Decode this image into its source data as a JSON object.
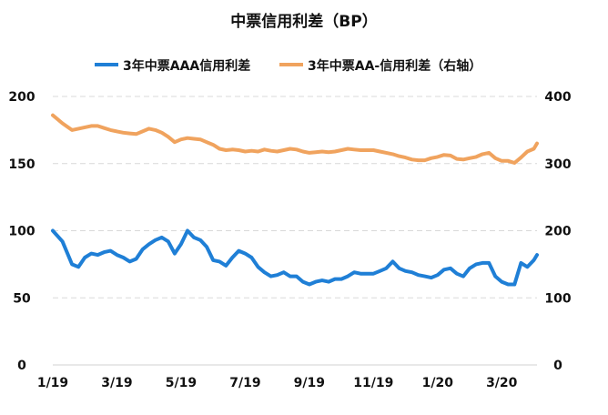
{
  "chart_data": {
    "type": "line",
    "title": "中票信用利差（BP）",
    "legend_position": "top",
    "grid": true,
    "x_tick_labels": [
      "1/19",
      "3/19",
      "5/19",
      "7/19",
      "9/19",
      "11/19",
      "1/20",
      "3/20"
    ],
    "y_left": {
      "range": [
        0,
        200
      ],
      "ticks": [
        "0",
        "50",
        "100",
        "150",
        "200"
      ]
    },
    "y_right": {
      "range": [
        0,
        400
      ],
      "ticks": [
        "0",
        "100",
        "200",
        "300",
        "400"
      ]
    },
    "series": [
      {
        "name": "3年中票AAA信用利差",
        "axis": "left",
        "color": "#1f7fd6",
        "points": [
          [
            0,
            100
          ],
          [
            0.3,
            92
          ],
          [
            0.6,
            75
          ],
          [
            0.8,
            73
          ],
          [
            1.0,
            80
          ],
          [
            1.2,
            83
          ],
          [
            1.4,
            82
          ],
          [
            1.6,
            84
          ],
          [
            1.8,
            85
          ],
          [
            2.0,
            82
          ],
          [
            2.2,
            80
          ],
          [
            2.4,
            77
          ],
          [
            2.6,
            79
          ],
          [
            2.8,
            86
          ],
          [
            3.0,
            90
          ],
          [
            3.2,
            93
          ],
          [
            3.4,
            95
          ],
          [
            3.6,
            92
          ],
          [
            3.8,
            83
          ],
          [
            4.0,
            90
          ],
          [
            4.2,
            100
          ],
          [
            4.4,
            95
          ],
          [
            4.6,
            93
          ],
          [
            4.8,
            88
          ],
          [
            5.0,
            78
          ],
          [
            5.2,
            77
          ],
          [
            5.4,
            74
          ],
          [
            5.6,
            80
          ],
          [
            5.8,
            85
          ],
          [
            6.0,
            83
          ],
          [
            6.2,
            80
          ],
          [
            6.4,
            73
          ],
          [
            6.6,
            69
          ],
          [
            6.8,
            66
          ],
          [
            7.0,
            67
          ],
          [
            7.2,
            69
          ],
          [
            7.4,
            66
          ],
          [
            7.6,
            66
          ],
          [
            7.8,
            62
          ],
          [
            8.0,
            60
          ],
          [
            8.2,
            62
          ],
          [
            8.4,
            63
          ],
          [
            8.6,
            62
          ],
          [
            8.8,
            64
          ],
          [
            9.0,
            64
          ],
          [
            9.2,
            66
          ],
          [
            9.4,
            69
          ],
          [
            9.6,
            68
          ],
          [
            9.8,
            68
          ],
          [
            10.0,
            68
          ],
          [
            10.2,
            70
          ],
          [
            10.4,
            72
          ],
          [
            10.6,
            77
          ],
          [
            10.8,
            72
          ],
          [
            11.0,
            70
          ],
          [
            11.2,
            69
          ],
          [
            11.4,
            67
          ],
          [
            11.6,
            66
          ],
          [
            11.8,
            65
          ],
          [
            12.0,
            67
          ],
          [
            12.2,
            71
          ],
          [
            12.4,
            72
          ],
          [
            12.6,
            68
          ],
          [
            12.8,
            66
          ],
          [
            13.0,
            72
          ],
          [
            13.2,
            75
          ],
          [
            13.4,
            76
          ],
          [
            13.6,
            76
          ],
          [
            13.8,
            66
          ],
          [
            14.0,
            62
          ],
          [
            14.2,
            60
          ],
          [
            14.4,
            60
          ],
          [
            14.6,
            76
          ],
          [
            14.8,
            73
          ],
          [
            15.0,
            78
          ],
          [
            15.1,
            82
          ]
        ]
      },
      {
        "name": "3年中票AA-信用利差（右轴）",
        "axis": "right",
        "color": "#f0a35e",
        "points": [
          [
            0,
            372
          ],
          [
            0.3,
            360
          ],
          [
            0.6,
            350
          ],
          [
            0.8,
            352
          ],
          [
            1.0,
            354
          ],
          [
            1.2,
            356
          ],
          [
            1.4,
            356
          ],
          [
            1.6,
            353
          ],
          [
            1.8,
            350
          ],
          [
            2.0,
            348
          ],
          [
            2.2,
            346
          ],
          [
            2.4,
            345
          ],
          [
            2.6,
            344
          ],
          [
            2.8,
            348
          ],
          [
            3.0,
            352
          ],
          [
            3.2,
            350
          ],
          [
            3.4,
            346
          ],
          [
            3.6,
            340
          ],
          [
            3.8,
            332
          ],
          [
            4.0,
            336
          ],
          [
            4.2,
            338
          ],
          [
            4.4,
            337
          ],
          [
            4.6,
            336
          ],
          [
            4.8,
            332
          ],
          [
            5.0,
            328
          ],
          [
            5.2,
            322
          ],
          [
            5.4,
            320
          ],
          [
            5.6,
            321
          ],
          [
            5.8,
            320
          ],
          [
            6.0,
            318
          ],
          [
            6.2,
            319
          ],
          [
            6.4,
            318
          ],
          [
            6.6,
            321
          ],
          [
            6.8,
            319
          ],
          [
            7.0,
            318
          ],
          [
            7.2,
            320
          ],
          [
            7.4,
            322
          ],
          [
            7.6,
            321
          ],
          [
            7.8,
            318
          ],
          [
            8.0,
            316
          ],
          [
            8.2,
            317
          ],
          [
            8.4,
            318
          ],
          [
            8.6,
            317
          ],
          [
            8.8,
            318
          ],
          [
            9.0,
            320
          ],
          [
            9.2,
            322
          ],
          [
            9.4,
            321
          ],
          [
            9.6,
            320
          ],
          [
            9.8,
            320
          ],
          [
            10.0,
            320
          ],
          [
            10.2,
            318
          ],
          [
            10.4,
            316
          ],
          [
            10.6,
            314
          ],
          [
            10.8,
            311
          ],
          [
            11.0,
            309
          ],
          [
            11.2,
            306
          ],
          [
            11.4,
            305
          ],
          [
            11.6,
            305
          ],
          [
            11.8,
            308
          ],
          [
            12.0,
            310
          ],
          [
            12.2,
            313
          ],
          [
            12.4,
            312
          ],
          [
            12.6,
            307
          ],
          [
            12.8,
            306
          ],
          [
            13.0,
            308
          ],
          [
            13.2,
            310
          ],
          [
            13.4,
            314
          ],
          [
            13.6,
            316
          ],
          [
            13.8,
            308
          ],
          [
            14.0,
            304
          ],
          [
            14.2,
            304
          ],
          [
            14.4,
            301
          ],
          [
            14.6,
            309
          ],
          [
            14.8,
            318
          ],
          [
            15.0,
            322
          ],
          [
            15.1,
            330
          ]
        ]
      }
    ]
  }
}
